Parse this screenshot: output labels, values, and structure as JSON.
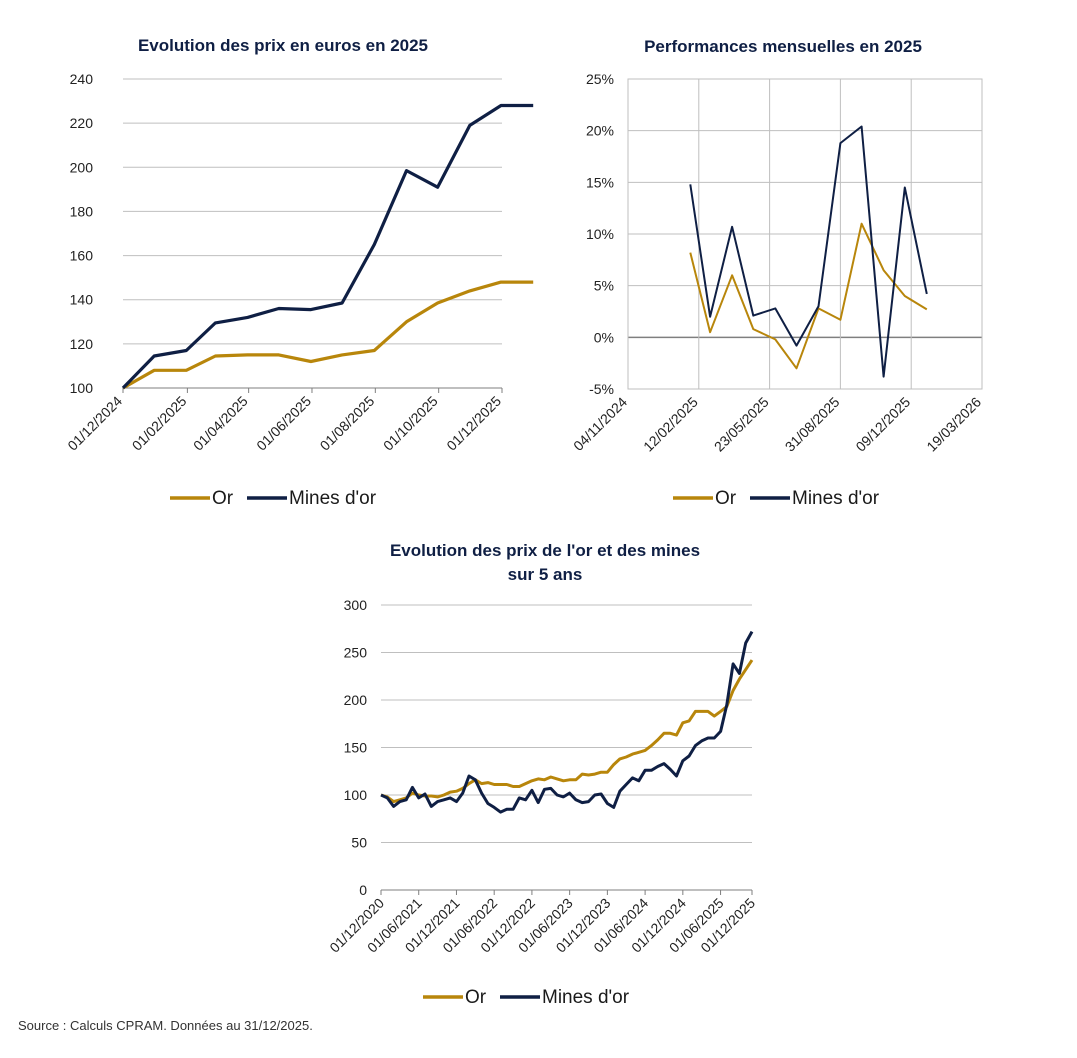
{
  "colors": {
    "gold": "#B8860B",
    "navy": "#0F1F44",
    "axis": "#7f7f7f",
    "grid": "#bfbfbf"
  },
  "chart_data": [
    {
      "type": "line",
      "title": "Evolution des prix en euros en 2025",
      "x": [
        "01/12/2024",
        "01/01/2025",
        "01/02/2025",
        "01/03/2025",
        "01/04/2025",
        "01/05/2025",
        "01/06/2025",
        "01/07/2025",
        "01/08/2025",
        "01/09/2025",
        "01/10/2025",
        "01/11/2025",
        "01/12/2025"
      ],
      "x_tick_labels": [
        "01/12/2024",
        "01/02/2025",
        "01/04/2025",
        "01/06/2025",
        "01/08/2025",
        "01/10/2025",
        "01/12/2025"
      ],
      "ylim": [
        100,
        240
      ],
      "y_ticks": [
        "100",
        "120",
        "140",
        "160",
        "180",
        "200",
        "220",
        "240"
      ],
      "grid": "horizontal",
      "legend_position": "bottom",
      "series": [
        {
          "name": "Or",
          "color_key": "gold",
          "x": [
            "01/12/2024",
            "31/12/2024",
            "31/01/2025",
            "28/02/2025",
            "31/03/2025",
            "30/04/2025",
            "31/05/2025",
            "30/06/2025",
            "31/07/2025",
            "31/08/2025",
            "30/09/2025",
            "31/10/2025",
            "30/11/2025",
            "31/12/2025"
          ],
          "values": [
            100,
            108,
            108,
            114.5,
            115,
            115,
            112,
            115,
            117,
            130,
            138.5,
            144,
            148,
            148
          ]
        },
        {
          "name": "Mines d'or",
          "color_key": "navy",
          "x": [
            "01/12/2024",
            "31/12/2024",
            "31/01/2025",
            "28/02/2025",
            "31/03/2025",
            "30/04/2025",
            "31/05/2025",
            "30/06/2025",
            "31/07/2025",
            "31/08/2025",
            "30/09/2025",
            "31/10/2025",
            "30/11/2025",
            "31/12/2025"
          ],
          "values": [
            100,
            114.5,
            117,
            129.5,
            132,
            136,
            135.5,
            138.5,
            165,
            198.5,
            191,
            219,
            228,
            228
          ]
        }
      ]
    },
    {
      "type": "line",
      "title": "Performances mensuelles en 2025",
      "x_tick_labels": [
        "04/11/2024",
        "12/02/2025",
        "23/05/2025",
        "31/08/2025",
        "09/12/2025",
        "19/03/2026"
      ],
      "ylim": [
        -5,
        25
      ],
      "y_ticks": [
        "-5%",
        "0%",
        "5%",
        "10%",
        "15%",
        "20%",
        "25%"
      ],
      "grid": "both",
      "legend_position": "bottom",
      "series": [
        {
          "name": "Or",
          "color_key": "gold",
          "x": [
            "31/01/2025",
            "28/02/2025",
            "31/03/2025",
            "30/04/2025",
            "31/05/2025",
            "30/06/2025",
            "31/07/2025",
            "31/08/2025",
            "30/09/2025",
            "31/10/2025",
            "30/11/2025",
            "31/12/2025"
          ],
          "values": [
            8.2,
            0.5,
            6.0,
            0.8,
            -0.2,
            -3.0,
            2.8,
            1.7,
            11.0,
            6.5,
            4.0,
            2.7
          ]
        },
        {
          "name": "Mines d'or",
          "color_key": "navy",
          "x": [
            "31/01/2025",
            "28/02/2025",
            "31/03/2025",
            "30/04/2025",
            "31/05/2025",
            "30/06/2025",
            "31/07/2025",
            "31/08/2025",
            "30/09/2025",
            "31/10/2025",
            "30/11/2025",
            "31/12/2025"
          ],
          "values": [
            14.8,
            2.0,
            10.7,
            2.1,
            2.8,
            -0.8,
            3.0,
            18.8,
            20.4,
            -3.8,
            14.5,
            4.2
          ]
        }
      ]
    },
    {
      "type": "line",
      "title": "Evolution des prix de l'or et des mines sur 5 ans",
      "title_lines": [
        "Evolution des prix de l'or et des mines",
        "sur 5 ans"
      ],
      "x_tick_labels": [
        "01/12/2020",
        "01/06/2021",
        "01/12/2021",
        "01/06/2022",
        "01/12/2022",
        "01/06/2023",
        "01/12/2023",
        "01/06/2024",
        "01/12/2024",
        "01/06/2025",
        "01/12/2025"
      ],
      "ylim": [
        0,
        300
      ],
      "y_ticks": [
        "0",
        "50",
        "100",
        "150",
        "200",
        "250",
        "300"
      ],
      "grid": "horizontal",
      "legend_position": "bottom",
      "series": [
        {
          "name": "Or",
          "color_key": "gold",
          "x_start": "01/12/2020",
          "step": "monthly",
          "values": [
            100,
            98,
            93,
            95,
            97,
            102,
            100,
            99,
            99,
            98,
            100,
            103,
            104,
            107,
            112,
            116,
            112,
            113,
            111,
            111,
            111,
            109,
            109,
            112,
            115,
            117,
            116,
            119,
            117,
            115,
            116,
            116,
            122,
            121,
            122,
            124,
            124,
            132,
            138,
            140,
            143,
            145,
            147,
            152,
            158,
            165,
            165,
            163,
            176,
            178,
            188,
            188,
            188,
            183,
            188,
            193,
            210,
            222,
            232,
            242
          ]
        },
        {
          "name": "Mines d'or",
          "color_key": "navy",
          "x_start": "01/12/2020",
          "step": "monthly",
          "values": [
            100,
            97,
            88,
            93,
            95,
            108,
            97,
            101,
            88,
            93,
            95,
            97,
            93,
            102,
            120,
            116,
            102,
            91,
            87,
            82,
            85,
            85,
            97,
            95,
            105,
            92,
            106,
            107,
            100,
            98,
            102,
            95,
            92,
            93,
            100,
            101,
            91,
            87,
            104,
            111,
            118,
            115,
            126,
            126,
            130,
            133,
            127,
            120,
            136,
            141,
            152,
            157,
            160,
            160,
            167,
            195,
            238,
            228,
            260,
            272
          ]
        }
      ]
    }
  ],
  "legend": {
    "or": "Or",
    "mines": "Mines d'or"
  },
  "source": "Source : Calculs CPRAM. Données au 31/12/2025."
}
